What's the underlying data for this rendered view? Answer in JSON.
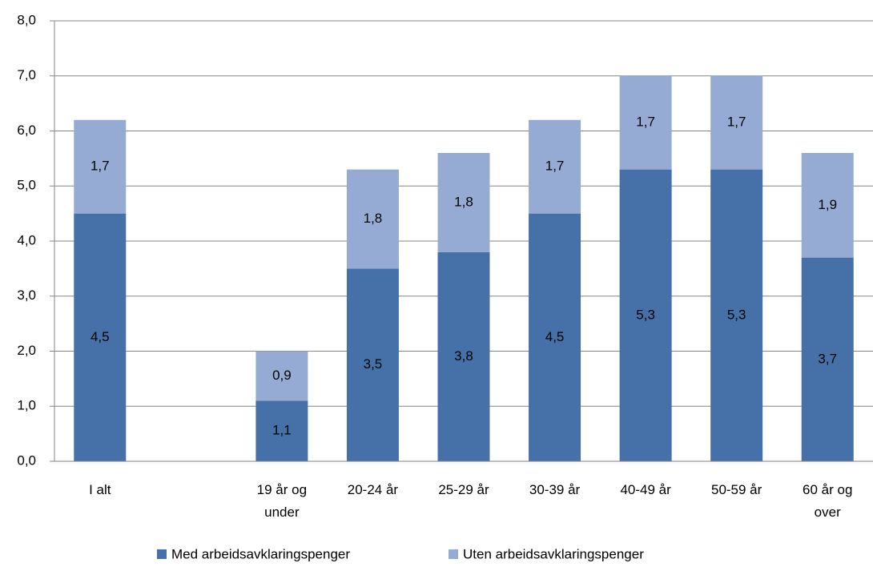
{
  "chart_data": {
    "type": "bar",
    "stacked": true,
    "categories": [
      "I alt",
      null,
      "19 år og under",
      "20-24 år",
      "25-29 år",
      "30-39 år",
      "40-49 år",
      "50-59 år",
      "60 år og over"
    ],
    "series": [
      {
        "name": "Med arbeidsavklaringspenger",
        "color": "#4571a8",
        "values": [
          4.5,
          null,
          1.1,
          3.5,
          3.8,
          4.5,
          5.3,
          5.3,
          3.7
        ],
        "value_labels": [
          "4,5",
          null,
          "1,1",
          "3,5",
          "3,8",
          "4,5",
          "5,3",
          "5,3",
          "3,7"
        ]
      },
      {
        "name": "Uten arbeidsavklaringspenger",
        "color": "#95abd3",
        "values": [
          1.7,
          null,
          0.9,
          1.8,
          1.8,
          1.7,
          1.7,
          1.7,
          1.9
        ],
        "value_labels": [
          "1,7",
          null,
          "0,9",
          "1,8",
          "1,8",
          "1,7",
          "1,7",
          "1,7",
          "1,9"
        ]
      }
    ],
    "ylim": [
      0,
      8
    ],
    "yticks": [
      {
        "value": 0,
        "label": "0,0"
      },
      {
        "value": 1,
        "label": "1,0"
      },
      {
        "value": 2,
        "label": "2,0"
      },
      {
        "value": 3,
        "label": "3,0"
      },
      {
        "value": 4,
        "label": "4,0"
      },
      {
        "value": 5,
        "label": "5,0"
      },
      {
        "value": 6,
        "label": "6,0"
      },
      {
        "value": 7,
        "label": "7,0"
      },
      {
        "value": 8,
        "label": "8,0"
      }
    ],
    "grid": true,
    "legend": "bottom"
  }
}
